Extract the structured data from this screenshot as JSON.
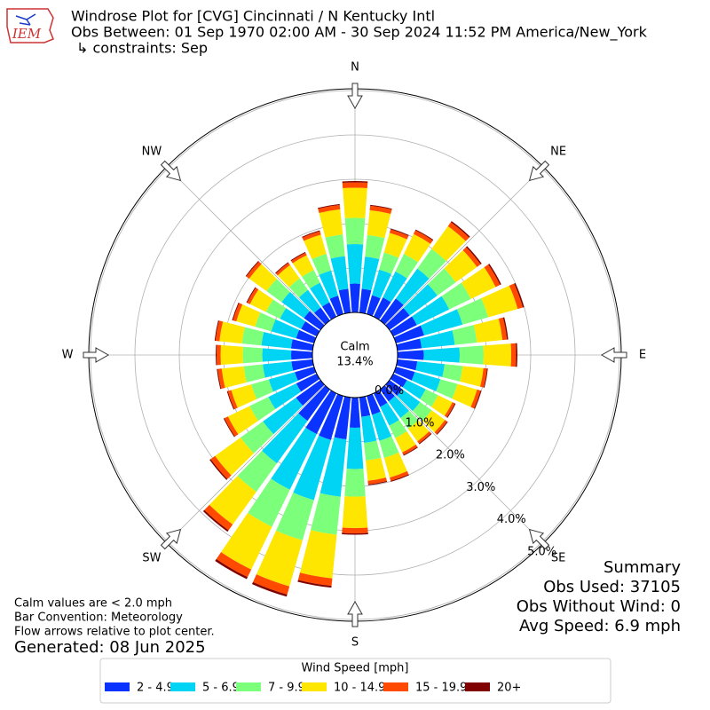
{
  "chart_data": {
    "type": "windrose",
    "title": "Windrose Plot for [CVG] Cincinnati / N Kentucky Intl",
    "subtitle": "Obs Between: 01 Sep 1970 02:00 AM - 30 Sep 2024 11:52 PM America/New_York",
    "constraints": "↳ constraints: Sep",
    "logo_text": "IEM",
    "x": [
      0,
      10,
      20,
      30,
      40,
      50,
      60,
      70,
      80,
      90,
      100,
      110,
      120,
      130,
      140,
      150,
      160,
      170,
      180,
      190,
      200,
      210,
      220,
      230,
      240,
      250,
      260,
      270,
      280,
      290,
      300,
      310,
      320,
      330,
      340,
      350
    ],
    "compass": [
      {
        "value": 0,
        "label": "N"
      },
      {
        "value": 45,
        "label": "NE"
      },
      {
        "value": 90,
        "label": "E"
      },
      {
        "value": 135,
        "label": "SE"
      },
      {
        "value": 180,
        "label": "S"
      },
      {
        "value": 225,
        "label": "SW"
      },
      {
        "value": 270,
        "label": "W"
      },
      {
        "value": 315,
        "label": "NW"
      }
    ],
    "rlim": [
      0,
      5
    ],
    "rticks": [
      {
        "value": 0,
        "label": "0.0%"
      },
      {
        "value": 1,
        "label": "1.0%"
      },
      {
        "value": 2,
        "label": "2.0%"
      },
      {
        "value": 3,
        "label": "3.0%"
      },
      {
        "value": 4,
        "label": "4.0%"
      },
      {
        "value": 5,
        "label": "5.0%"
      }
    ],
    "grid": true,
    "calm": {
      "name": "Calm",
      "values": [
        13.4
      ],
      "value_labels": [
        "13.4%"
      ]
    },
    "legend_title": "Wind Speed [mph]",
    "series": [
      {
        "name": "2 - 4.9",
        "color": "#0a33ff",
        "values": [
          0.65,
          0.54,
          0.44,
          0.48,
          0.61,
          0.56,
          0.59,
          0.66,
          0.55,
          0.59,
          0.45,
          0.44,
          0.34,
          0.36,
          0.33,
          0.34,
          0.44,
          0.44,
          0.68,
          0.95,
          1.03,
          1.02,
          0.87,
          0.68,
          0.51,
          0.45,
          0.48,
          0.48,
          0.49,
          0.42,
          0.39,
          0.46,
          0.36,
          0.36,
          0.43,
          0.54
        ]
      },
      {
        "name": "5 - 6.9",
        "color": "#00d4f4",
        "values": [
          0.89,
          0.73,
          0.6,
          0.65,
          0.83,
          0.77,
          0.81,
          0.9,
          0.75,
          0.81,
          0.62,
          0.6,
          0.47,
          0.49,
          0.46,
          0.47,
          0.61,
          0.59,
          0.93,
          1.3,
          1.41,
          1.39,
          1.18,
          0.92,
          0.7,
          0.61,
          0.65,
          0.65,
          0.67,
          0.58,
          0.53,
          0.62,
          0.49,
          0.49,
          0.59,
          0.74
        ]
      },
      {
        "name": "7 - 9.9",
        "color": "#7cff7a",
        "values": [
          0.59,
          0.49,
          0.4,
          0.44,
          0.55,
          0.51,
          0.54,
          0.6,
          0.5,
          0.54,
          0.41,
          0.4,
          0.31,
          0.32,
          0.3,
          0.31,
          0.4,
          0.4,
          0.62,
          0.86,
          0.94,
          0.93,
          0.79,
          0.62,
          0.47,
          0.41,
          0.43,
          0.44,
          0.44,
          0.38,
          0.35,
          0.42,
          0.32,
          0.32,
          0.39,
          0.49
        ]
      },
      {
        "name": "10 - 14.9",
        "color": "#ffe600",
        "values": [
          0.68,
          0.56,
          0.46,
          0.5,
          0.63,
          0.59,
          0.62,
          0.69,
          0.58,
          0.62,
          0.47,
          0.46,
          0.36,
          0.37,
          0.35,
          0.36,
          0.46,
          0.46,
          0.71,
          0.99,
          1.08,
          1.07,
          0.91,
          0.71,
          0.54,
          0.47,
          0.5,
          0.5,
          0.51,
          0.44,
          0.4,
          0.48,
          0.37,
          0.37,
          0.45,
          0.57
        ]
      },
      {
        "name": "15 - 19.9",
        "color": "#ff4a00",
        "values": [
          0.12,
          0.1,
          0.08,
          0.09,
          0.11,
          0.1,
          0.11,
          0.12,
          0.1,
          0.11,
          0.08,
          0.08,
          0.06,
          0.06,
          0.06,
          0.06,
          0.08,
          0.08,
          0.12,
          0.17,
          0.19,
          0.19,
          0.16,
          0.12,
          0.09,
          0.08,
          0.09,
          0.09,
          0.09,
          0.08,
          0.07,
          0.08,
          0.06,
          0.06,
          0.08,
          0.1
        ]
      },
      {
        "name": "20+",
        "color": "#800000",
        "values": [
          0.03,
          0.02,
          0.02,
          0.02,
          0.03,
          0.03,
          0.03,
          0.03,
          0.03,
          0.03,
          0.02,
          0.02,
          0.02,
          0.02,
          0.02,
          0.02,
          0.02,
          0.02,
          0.03,
          0.04,
          0.05,
          0.05,
          0.04,
          0.03,
          0.02,
          0.02,
          0.02,
          0.02,
          0.02,
          0.02,
          0.02,
          0.02,
          0.02,
          0.02,
          0.02,
          0.02
        ]
      }
    ],
    "notes": [
      "Calm values are < 2.0 mph",
      "Bar Convention: Meteorology",
      "Flow arrows relative to plot center."
    ],
    "generated": "Generated: 08 Jun 2025",
    "summary": [
      "Summary",
      "Obs Used: 37105",
      "Obs Without Wind: 0",
      "Avg Speed: 6.9 mph"
    ]
  }
}
